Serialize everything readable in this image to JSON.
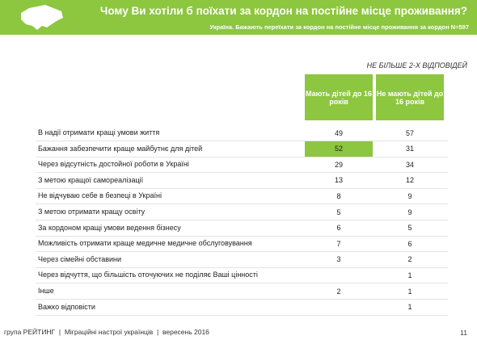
{
  "header": {
    "title": "Чому Ви хотіли б поїхати за кордон на постійне місце проживання?",
    "subtitle": "Україна. Бажають переїхати за кордон на постійне місце проживання за кордон N=597",
    "color": "#8dc63f"
  },
  "note": "НЕ БІЛЬШЕ 2-Х ВІДПОВІДЕЙ",
  "table": {
    "columns": [
      "Мають дітей до 16 років",
      "Не мають дітей до 16 років"
    ],
    "rows": [
      {
        "label": "В надії отримати кращі умови життя",
        "values": [
          49,
          57
        ]
      },
      {
        "label": "Бажання забезпечити краще майбутнє для дітей",
        "values": [
          52,
          31
        ]
      },
      {
        "label": "Через відсутність достойної роботи в Україні",
        "values": [
          29,
          34
        ]
      },
      {
        "label": "З метою кращої самореалізації",
        "values": [
          13,
          12
        ]
      },
      {
        "label": "Не відчуваю себе в безпеці в Україні",
        "values": [
          8,
          9
        ]
      },
      {
        "label": "З метою отримати кращу освіту",
        "values": [
          5,
          9
        ]
      },
      {
        "label": "За кордоном кращі умови ведення бізнесу",
        "values": [
          6,
          5
        ]
      },
      {
        "label": "Можливість отримати краще медичне медичне обслуговування",
        "values": [
          7,
          6
        ]
      },
      {
        "label": "Через сімейні обставини",
        "values": [
          3,
          2
        ]
      },
      {
        "label": "Через відчуття, що більшість оточуючих не поділяє Ваші цінності",
        "values": [
          null,
          1
        ]
      },
      {
        "label": "Інше",
        "values": [
          2,
          1
        ]
      },
      {
        "label": "Важко відповісти",
        "values": [
          null,
          1
        ]
      }
    ],
    "highlight": {
      "row": 1,
      "column": 0,
      "color": "#8dc63f"
    }
  },
  "footer": {
    "text": "група РЕЙТИНГ  |  Міграційні настрої українців  |  вересень 2016",
    "page": "11"
  }
}
